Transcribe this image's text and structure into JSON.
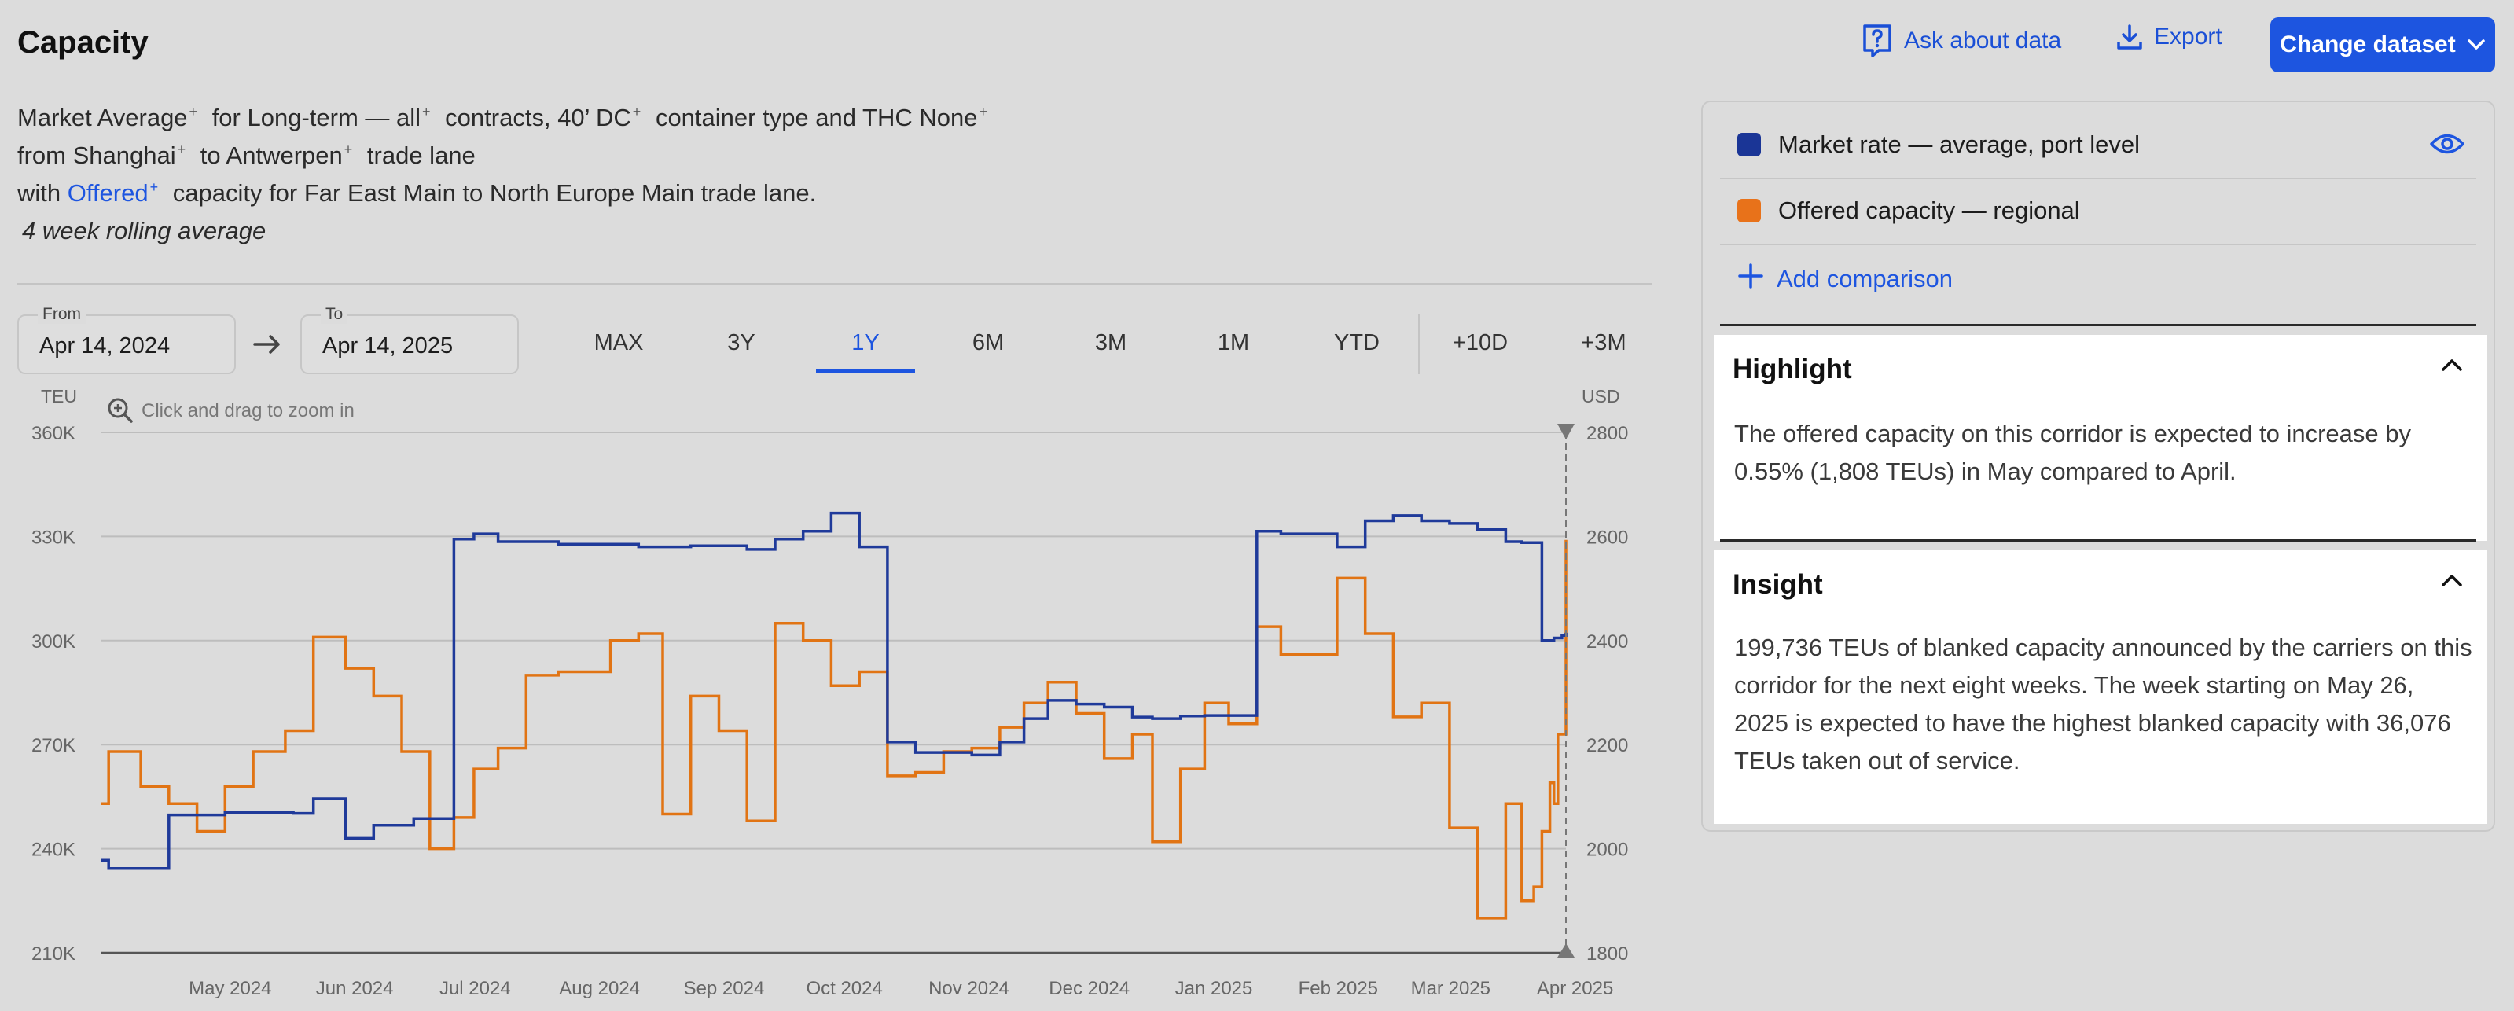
{
  "header": {
    "title": "Capacity",
    "ask_label": "Ask about data",
    "export_label": "Export",
    "change_label": "Change dataset"
  },
  "description": {
    "line1": [
      "Market Average",
      "for",
      "Long-term — all",
      "contracts,",
      "40’ DC",
      "container type and THC",
      "None"
    ],
    "line2": [
      "from",
      "Shanghai",
      "to",
      "Antwerpen",
      "trade lane"
    ],
    "line3": [
      "with",
      "Offered",
      "capacity for Far East Main to North Europe Main trade lane."
    ],
    "line4": "4 week rolling average"
  },
  "date_range": {
    "from_label": "From",
    "from_value": "Apr 14, 2024",
    "to_label": "To",
    "to_value": "Apr 14, 2025"
  },
  "range_tabs": [
    "MAX",
    "3Y",
    "1Y",
    "6M",
    "3M",
    "1M",
    "YTD",
    "+10D",
    "+3M"
  ],
  "active_range": "1Y",
  "chart": {
    "zoom_hint": "Click and drag to zoom in",
    "colors": {
      "market": "#1f3a9a",
      "capacity": "#e17414"
    }
  },
  "legend": {
    "items": [
      {
        "label": "Market rate — average, port level",
        "color": "#1a3596"
      },
      {
        "label": "Offered capacity — regional",
        "color": "#e8721a"
      }
    ],
    "add_label": "Add comparison"
  },
  "highlight": {
    "title": "Highlight",
    "text": "The offered capacity on this corridor is expected to increase by 0.55% (1,808 TEUs) in May compared to April."
  },
  "insight": {
    "title": "Insight",
    "text": "199,736 TEUs of blanked capacity announced by the carriers on this corridor for the next eight weeks. The week starting on May 26, 2025 is expected to have the highest blanked capacity with 36,076 TEUs taken out of service."
  },
  "chart_data": {
    "type": "line",
    "title": "",
    "x_labels": [
      "May 2024",
      "Jun 2024",
      "Jul 2024",
      "Aug 2024",
      "Sep 2024",
      "Oct 2024",
      "Nov 2024",
      "Dec 2024",
      "Jan 2025",
      "Feb 2025",
      "Mar 2025",
      "Apr 2025"
    ],
    "y_left": {
      "label": "TEU",
      "ticks": [
        "360K",
        "330K",
        "300K",
        "270K",
        "240K",
        "210K"
      ],
      "range": [
        210000,
        360000
      ]
    },
    "y_right": {
      "label": "USD",
      "ticks": [
        "2800",
        "2600",
        "2400",
        "2200",
        "2000",
        "1800"
      ],
      "range": [
        1800,
        2800
      ]
    },
    "grid": true,
    "series": [
      {
        "name": "Offered capacity — regional",
        "axis": "left",
        "step": true,
        "points": [
          [
            "2024-04-14",
            253000
          ],
          [
            "2024-04-16",
            268000
          ],
          [
            "2024-04-24",
            258000
          ],
          [
            "2024-05-01",
            253000
          ],
          [
            "2024-05-08",
            245000
          ],
          [
            "2024-05-15",
            258000
          ],
          [
            "2024-05-22",
            268000
          ],
          [
            "2024-05-30",
            274000
          ],
          [
            "2024-06-06",
            301000
          ],
          [
            "2024-06-14",
            292000
          ],
          [
            "2024-06-21",
            284000
          ],
          [
            "2024-06-28",
            268000
          ],
          [
            "2024-07-05",
            240000
          ],
          [
            "2024-07-11",
            249000
          ],
          [
            "2024-07-16",
            263000
          ],
          [
            "2024-07-22",
            269000
          ],
          [
            "2024-07-29",
            290000
          ],
          [
            "2024-08-06",
            291000
          ],
          [
            "2024-08-13",
            291000
          ],
          [
            "2024-08-19",
            300000
          ],
          [
            "2024-08-26",
            302000
          ],
          [
            "2024-09-01",
            250000
          ],
          [
            "2024-09-08",
            284000
          ],
          [
            "2024-09-15",
            274000
          ],
          [
            "2024-09-22",
            248000
          ],
          [
            "2024-09-29",
            305000
          ],
          [
            "2024-10-06",
            300000
          ],
          [
            "2024-10-13",
            287000
          ],
          [
            "2024-10-20",
            291000
          ],
          [
            "2024-10-27",
            261000
          ],
          [
            "2024-11-03",
            262000
          ],
          [
            "2024-11-10",
            268000
          ],
          [
            "2024-11-17",
            269000
          ],
          [
            "2024-11-24",
            275000
          ],
          [
            "2024-11-30",
            282000
          ],
          [
            "2024-12-06",
            288000
          ],
          [
            "2024-12-13",
            279000
          ],
          [
            "2024-12-20",
            266000
          ],
          [
            "2024-12-27",
            273000
          ],
          [
            "2025-01-01",
            242000
          ],
          [
            "2025-01-08",
            263000
          ],
          [
            "2025-01-14",
            282000
          ],
          [
            "2025-01-20",
            276000
          ],
          [
            "2025-01-27",
            304000
          ],
          [
            "2025-02-02",
            296000
          ],
          [
            "2025-02-09",
            296000
          ],
          [
            "2025-02-16",
            318000
          ],
          [
            "2025-02-23",
            302000
          ],
          [
            "2025-03-02",
            278000
          ],
          [
            "2025-03-09",
            282000
          ],
          [
            "2025-03-16",
            246000
          ],
          [
            "2025-03-23",
            220000
          ],
          [
            "2025-03-30",
            253000
          ],
          [
            "2025-04-03",
            225000
          ],
          [
            "2025-04-06",
            229000
          ],
          [
            "2025-04-08",
            245000
          ],
          [
            "2025-04-10",
            259000
          ],
          [
            "2025-04-11",
            253000
          ],
          [
            "2025-04-12",
            273000
          ],
          [
            "2025-04-13",
            273000
          ],
          [
            "2025-04-14",
            329000
          ]
        ]
      },
      {
        "name": "Market rate — average, port level",
        "axis": "right",
        "step": true,
        "points": [
          [
            "2024-04-14",
            1978
          ],
          [
            "2024-04-16",
            1962
          ],
          [
            "2024-05-01",
            2065
          ],
          [
            "2024-05-15",
            2070
          ],
          [
            "2024-06-01",
            2068
          ],
          [
            "2024-06-06",
            2096
          ],
          [
            "2024-06-14",
            2020
          ],
          [
            "2024-06-21",
            2045
          ],
          [
            "2024-07-01",
            2058
          ],
          [
            "2024-07-11",
            2595
          ],
          [
            "2024-07-16",
            2605
          ],
          [
            "2024-07-22",
            2590
          ],
          [
            "2024-08-06",
            2585
          ],
          [
            "2024-08-26",
            2580
          ],
          [
            "2024-09-08",
            2582
          ],
          [
            "2024-09-22",
            2575
          ],
          [
            "2024-09-29",
            2595
          ],
          [
            "2024-10-06",
            2610
          ],
          [
            "2024-10-13",
            2645
          ],
          [
            "2024-10-20",
            2580
          ],
          [
            "2024-10-27",
            2205
          ],
          [
            "2024-11-03",
            2185
          ],
          [
            "2024-11-17",
            2180
          ],
          [
            "2024-11-24",
            2205
          ],
          [
            "2024-11-30",
            2250
          ],
          [
            "2024-12-06",
            2285
          ],
          [
            "2024-12-13",
            2278
          ],
          [
            "2024-12-20",
            2272
          ],
          [
            "2024-12-27",
            2253
          ],
          [
            "2025-01-01",
            2250
          ],
          [
            "2025-01-08",
            2255
          ],
          [
            "2025-01-14",
            2256
          ],
          [
            "2025-01-27",
            2610
          ],
          [
            "2025-02-02",
            2605
          ],
          [
            "2025-02-16",
            2580
          ],
          [
            "2025-02-23",
            2630
          ],
          [
            "2025-03-02",
            2640
          ],
          [
            "2025-03-09",
            2630
          ],
          [
            "2025-03-16",
            2625
          ],
          [
            "2025-03-23",
            2613
          ],
          [
            "2025-03-30",
            2590
          ],
          [
            "2025-04-03",
            2588
          ],
          [
            "2025-04-08",
            2400
          ],
          [
            "2025-04-11",
            2405
          ],
          [
            "2025-04-13",
            2410
          ],
          [
            "2025-04-14",
            2415
          ]
        ]
      }
    ],
    "forecast_marker": "2025-04-14"
  }
}
